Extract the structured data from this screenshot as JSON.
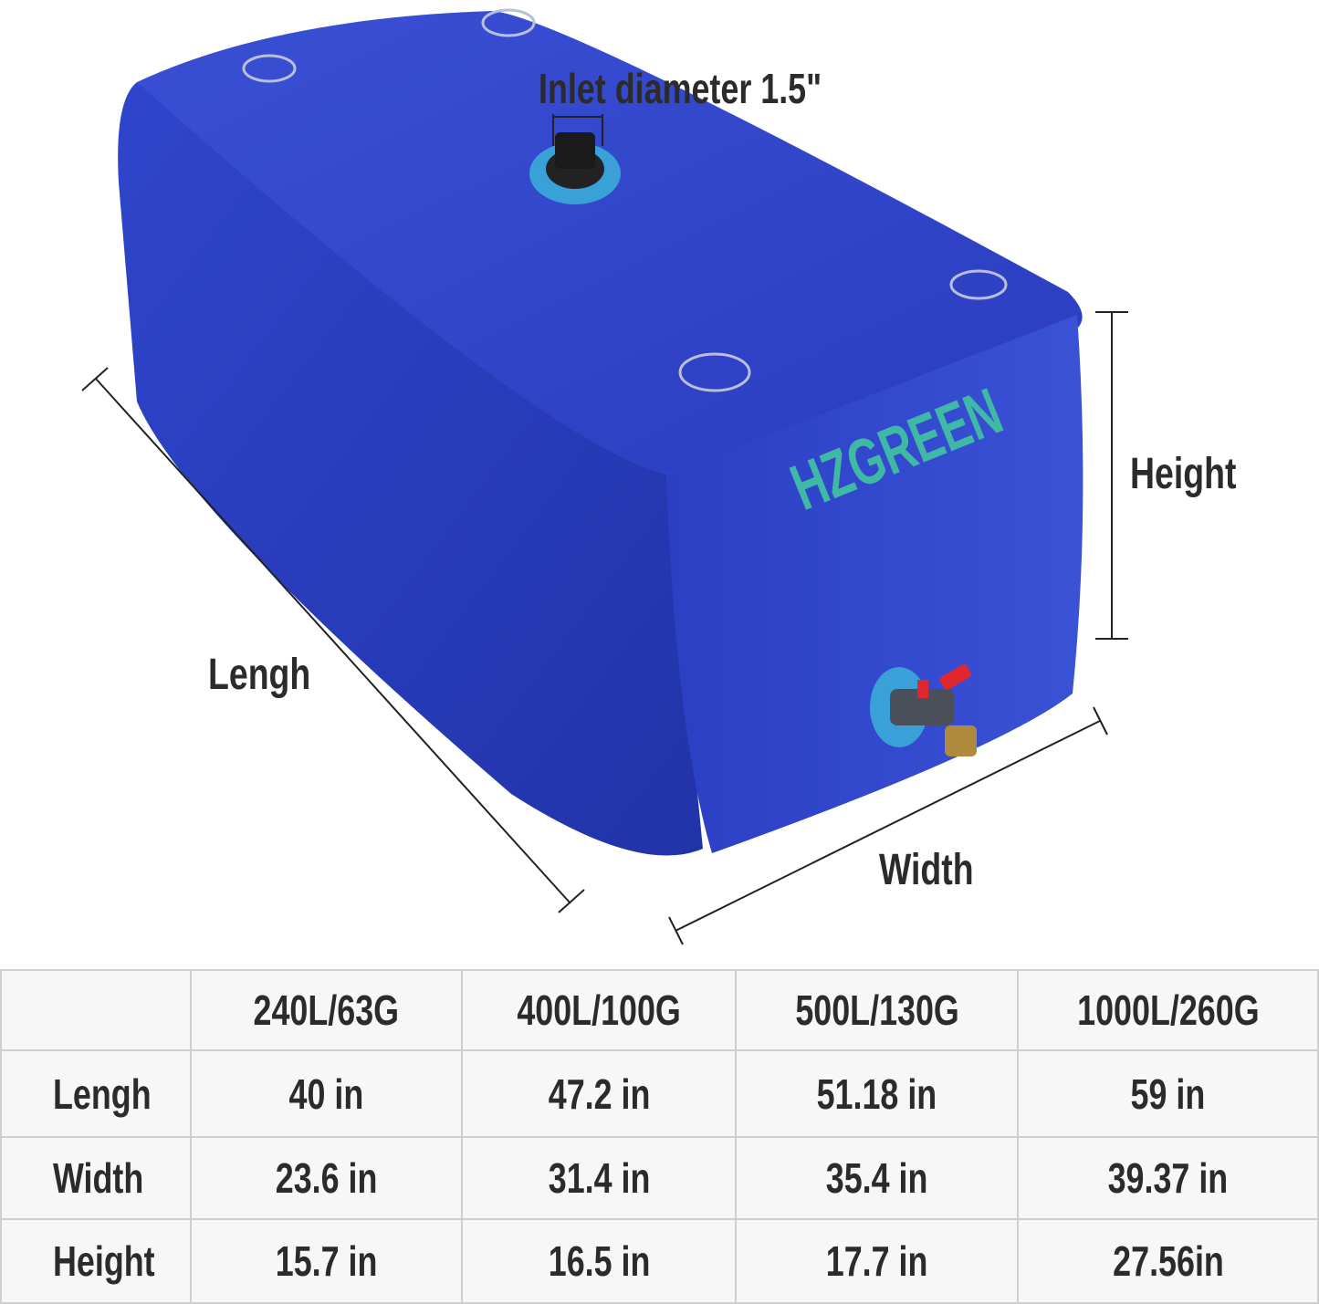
{
  "labels": {
    "inlet": "Inlet diameter 1.5\"",
    "height": "Height",
    "length": "Lengh",
    "width": "Width"
  },
  "brand": {
    "logo_text": "HZGREEN",
    "logo_color": "#3fb8a6"
  },
  "colors": {
    "tank": "#2c3fc0",
    "tank_dark": "#1e2c96",
    "valve_handle": "#e0262e"
  },
  "table": {
    "columns": [
      "",
      "240L/63G",
      "400L/100G",
      "500L/130G",
      "1000L/260G"
    ],
    "rows": [
      {
        "label": "Lengh",
        "values": [
          "40 in",
          "47.2 in",
          "51.18 in",
          "59 in"
        ]
      },
      {
        "label": "Width",
        "values": [
          "23.6 in",
          "31.4 in",
          "35.4 in",
          "39.37 in"
        ]
      },
      {
        "label": "Height",
        "values": [
          "15.7 in",
          "16.5 in",
          "17.7 in",
          "27.56in"
        ]
      }
    ]
  }
}
